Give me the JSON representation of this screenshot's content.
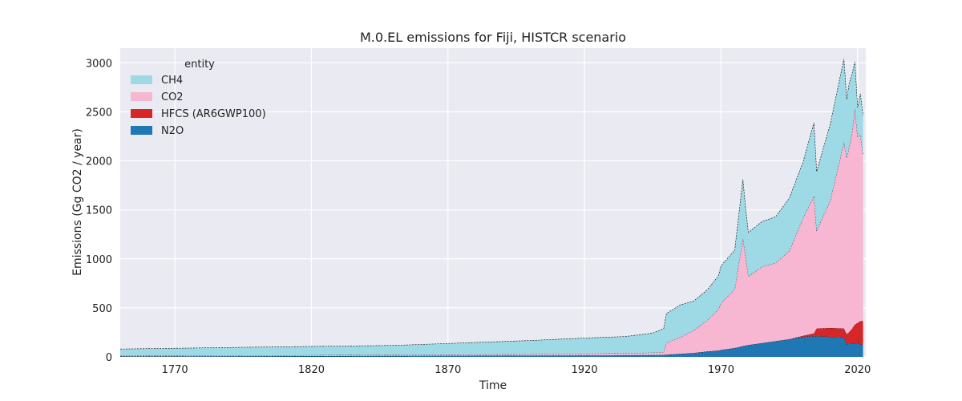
{
  "chart_data": {
    "type": "area",
    "stacked": true,
    "title": "M.0.EL emissions for Fiji, HISTCR scenario",
    "xlabel": "Time",
    "ylabel": "Emissions (Gg CO2 / year)",
    "xlim": [
      1750,
      2023
    ],
    "ylim": [
      0,
      3150
    ],
    "xticks": [
      1770,
      1820,
      1870,
      1920,
      1970,
      2020
    ],
    "yticks": [
      0,
      500,
      1000,
      1500,
      2000,
      2500,
      3000
    ],
    "grid": true,
    "legend": {
      "title": "entity",
      "placement": "top-left"
    },
    "x": [
      1750,
      1800,
      1850,
      1900,
      1920,
      1935,
      1945,
      1949,
      1950,
      1955,
      1960,
      1965,
      1969,
      1970,
      1975,
      1978,
      1979,
      1980,
      1985,
      1990,
      1995,
      2000,
      2004,
      2005,
      2010,
      2015,
      2016,
      2017,
      2018,
      2019,
      2020,
      2021,
      2022
    ],
    "series": [
      {
        "name": "N2O",
        "color": "#1f77b4",
        "values": [
          5,
          7,
          10,
          12,
          14,
          16,
          18,
          20,
          22,
          30,
          40,
          55,
          65,
          70,
          90,
          110,
          115,
          120,
          140,
          160,
          180,
          205,
          210,
          210,
          205,
          200,
          130,
          135,
          140,
          140,
          135,
          130,
          120
        ]
      },
      {
        "name": "HFCS (AR6GWP100)",
        "color": "#d62728",
        "values": [
          0,
          0,
          0,
          0,
          0,
          0,
          0,
          0,
          0,
          0,
          0,
          0,
          0,
          0,
          0,
          0,
          0,
          0,
          0,
          0,
          0,
          10,
          30,
          80,
          90,
          90,
          100,
          120,
          150,
          190,
          210,
          235,
          245
        ]
      },
      {
        "name": "CO2",
        "color": "#f7b6d2",
        "values": [
          5,
          8,
          12,
          15,
          18,
          22,
          25,
          28,
          120,
          170,
          230,
          320,
          420,
          480,
          600,
          1100,
          900,
          700,
          780,
          800,
          900,
          1200,
          1400,
          1000,
          1300,
          1900,
          1800,
          1900,
          2000,
          2200,
          1900,
          1900,
          1700
        ]
      },
      {
        "name": "CH4",
        "color": "#9edae5",
        "values": [
          70,
          85,
          95,
          140,
          160,
          170,
          200,
          240,
          300,
          330,
          300,
          310,
          340,
          380,
          400,
          600,
          500,
          450,
          460,
          470,
          540,
          570,
          750,
          600,
          780,
          850,
          600,
          650,
          600,
          480,
          300,
          420,
          400
        ]
      }
    ]
  }
}
